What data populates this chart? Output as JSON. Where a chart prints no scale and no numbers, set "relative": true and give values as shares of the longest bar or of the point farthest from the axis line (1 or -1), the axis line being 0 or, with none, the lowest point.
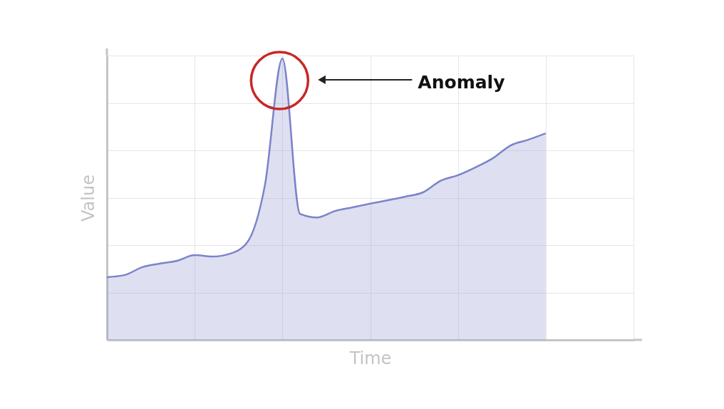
{
  "chart_data": {
    "type": "area",
    "relative": true,
    "xlabel": "Time",
    "ylabel": "Value",
    "grid": true,
    "line_style": "solid",
    "categories": [
      null,
      null,
      null,
      null,
      null,
      null,
      null,
      null,
      null,
      null,
      null,
      null,
      null,
      null,
      null,
      null,
      null,
      null,
      null,
      null,
      null,
      null,
      null,
      null,
      null,
      null
    ],
    "series": [
      {
        "color": "#7b83c9",
        "values": [
          0.223,
          0.23,
          0.258,
          0.271,
          0.281,
          0.301,
          0.296,
          0.306,
          0.347,
          0.549,
          1.0,
          0.448,
          0.435,
          0.458,
          0.471,
          0.484,
          0.496,
          0.509,
          0.524,
          0.565,
          0.585,
          0.613,
          0.646,
          0.691,
          0.711,
          0.734
        ]
      }
    ],
    "annotations": [
      "Anomaly"
    ]
  }
}
